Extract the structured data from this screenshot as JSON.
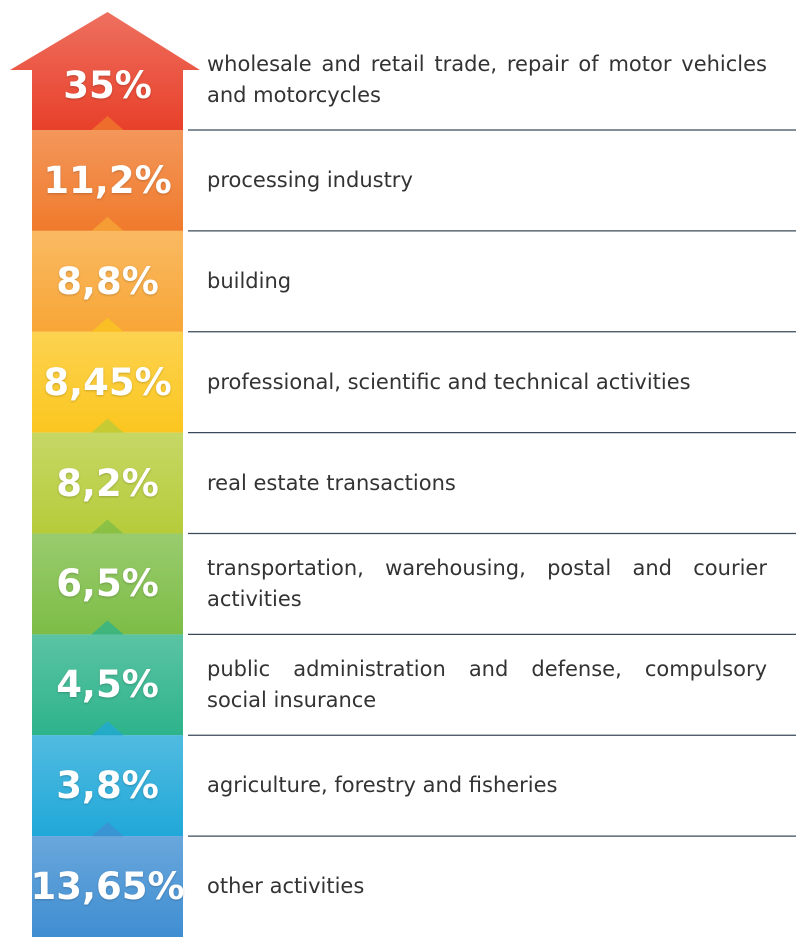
{
  "items": [
    {
      "value_label": "35%",
      "label": "wholesale and retail trade, repair of motor vehicles and motorcycles",
      "color": "#e8402a"
    },
    {
      "value_label": "11,2%",
      "label": "processing industry",
      "color": "#f07a2c"
    },
    {
      "value_label": "8,8%",
      "label": "building",
      "color": "#f8a636"
    },
    {
      "value_label": "8,45%",
      "label": "professional, scientific and technical activities",
      "color": "#fbc61f"
    },
    {
      "value_label": "8,2%",
      "label": "real estate transactions",
      "color": "#b6cc3a"
    },
    {
      "value_label": "6,5%",
      "label": "transportation, warehousing, postal and courier activities",
      "color": "#7dbd46"
    },
    {
      "value_label": "4,5%",
      "label": "public administration and defense, compulsory social insurance",
      "color": "#2db38b"
    },
    {
      "value_label": "3,8%",
      "label": "agriculture, forestry and fisheries",
      "color": "#20a8d8"
    },
    {
      "value_label": "13,65%",
      "label": "other activities",
      "color": "#3f8ed2"
    }
  ]
}
